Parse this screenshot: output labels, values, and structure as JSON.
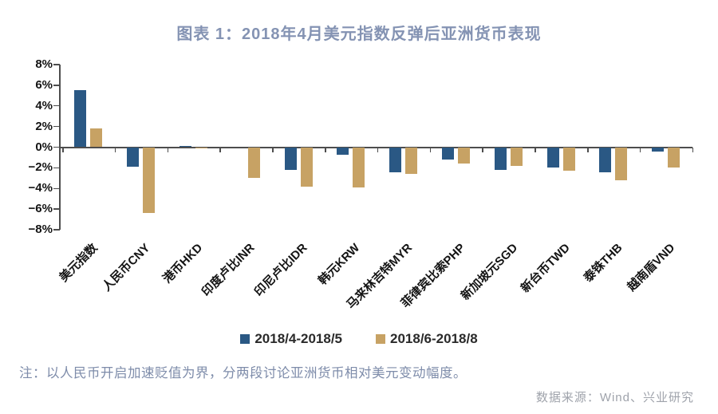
{
  "header": {
    "title": "图表 1：2018年4月美元指数反弹后亚洲货币表现"
  },
  "chart_data": {
    "type": "bar",
    "title": "图表 1：2018年4月美元指数反弹后亚洲货币表现",
    "categories": [
      "美元指数",
      "人民币CNY",
      "港币HKD",
      "印度卢比INR",
      "印尼卢比IDR",
      "韩元KRW",
      "马来林吉特MYR",
      "菲律宾比索PHP",
      "新加坡元SGD",
      "新台币TWD",
      "泰铢THB",
      "越南盾VND"
    ],
    "series": [
      {
        "name": "2018/4-2018/5",
        "color": "#2a5884",
        "values": [
          5.5,
          -1.9,
          0.1,
          0.0,
          -2.2,
          -0.7,
          -2.4,
          -1.2,
          -2.2,
          -2.0,
          -2.4,
          -0.4
        ]
      },
      {
        "name": "2018/6-2018/8",
        "color": "#c7a264",
        "values": [
          1.8,
          -6.4,
          -0.1,
          -3.0,
          -3.8,
          -3.9,
          -2.6,
          -1.6,
          -1.8,
          -2.3,
          -3.2,
          -2.0
        ]
      }
    ],
    "ylabel": "",
    "xlabel": "",
    "ylim": [
      -8,
      8
    ],
    "ytick_step": 2,
    "ytick_suffix": "%",
    "grid": false,
    "legend_position": "bottom"
  },
  "footer": {
    "note": "注：以人民币开启加速贬值为界，分两段讨论亚洲货币相对美元变动幅度。",
    "source": "数据来源：Wind、兴业研究"
  },
  "colors": {
    "title": "#8493b3",
    "note": "#7e8caa",
    "source": "#9fa3ab",
    "axis": "#4d4d4d",
    "series1": "#2a5884",
    "series2": "#c7a264"
  }
}
